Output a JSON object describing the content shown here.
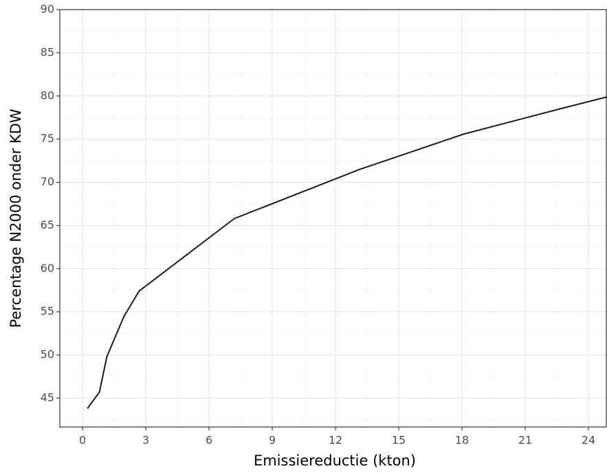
{
  "chart_data": {
    "type": "line",
    "x_label": "Emissiereductie (kton)",
    "y_label": "Percentage N2000 onder KDW",
    "series": [
      {
        "color": "#1a1a1a",
        "x": [
          0.23,
          0.8,
          1.15,
          1.95,
          2.68,
          7.2,
          13.15,
          18.1,
          22.8,
          24.9
        ],
        "values": [
          43.8,
          45.7,
          49.8,
          54.4,
          57.4,
          65.8,
          71.5,
          75.6,
          78.6,
          79.9
        ]
      }
    ],
    "xlim": [
      -1.08,
      24.88
    ],
    "ylim": [
      41.66,
      90
    ],
    "xticks": [
      0,
      3,
      6,
      9,
      12,
      15,
      18,
      21,
      24
    ],
    "yticks": [
      45,
      50,
      55,
      60,
      65,
      70,
      75,
      80,
      85,
      90
    ],
    "x_minor_ticks": [
      1.5,
      4.5,
      7.5,
      10.5,
      13.5,
      16.5,
      19.5,
      22.5
    ],
    "y_minor_ticks": [
      42.5,
      47.5,
      52.5,
      57.5,
      62.5,
      67.5,
      72.5,
      77.5,
      82.5,
      87.5
    ],
    "grid": true
  }
}
